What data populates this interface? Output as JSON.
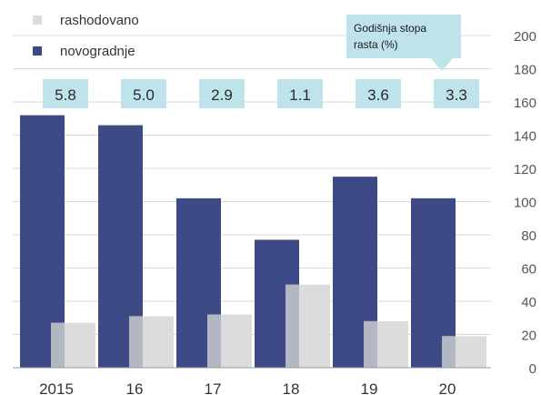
{
  "chart_data": {
    "type": "bar",
    "categories": [
      "2015",
      "16",
      "17",
      "18",
      "19",
      "20"
    ],
    "series": [
      {
        "name": "novogradnje",
        "values": [
          152,
          146,
          102,
          77,
          115,
          102
        ],
        "color": "#3d4a85"
      },
      {
        "name": "rashodovano",
        "values": [
          27,
          31,
          32,
          50,
          28,
          19
        ],
        "color": "#dcdcdc"
      }
    ],
    "growth_rates": [
      "5.8",
      "5.0",
      "2.9",
      "1.1",
      "3.6",
      "3.3"
    ],
    "growth_note": "Godišnja stopa rasta (%)",
    "ylim": [
      0,
      200
    ],
    "yticks": [
      0,
      20,
      40,
      60,
      80,
      100,
      120,
      140,
      160,
      180,
      200
    ],
    "y_axis_side": "right",
    "grid": true,
    "legend_position": "top-left",
    "colors": {
      "grid": "#dadada",
      "tick_text": "#555555",
      "rate_box": "#bfe3ea",
      "overlap_blend": "#b3b6c3"
    }
  }
}
